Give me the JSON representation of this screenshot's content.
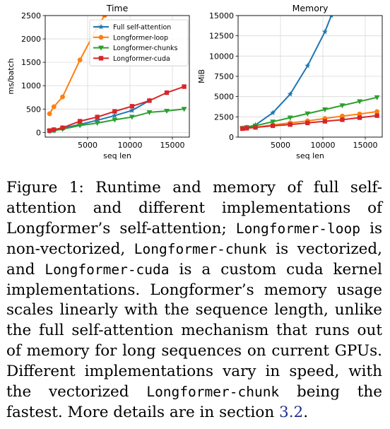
{
  "chart_data": [
    {
      "type": "line",
      "title": "Time",
      "xlabel": "seq len",
      "ylabel": "ms/batch",
      "xlim": [
        0,
        17000
      ],
      "ylim": [
        -100,
        2500
      ],
      "xticks": [
        5000,
        10000,
        15000
      ],
      "yticks": [
        0,
        500,
        1000,
        1500,
        2000,
        2500
      ],
      "xtick_labels": [
        "5000",
        "10000",
        "15000"
      ],
      "ytick_labels": [
        "0",
        "500",
        "1000",
        "1500",
        "2000",
        "2500"
      ],
      "grid": true,
      "legend_position": "upper-right",
      "series": [
        {
          "name": "Full self-attention",
          "color": "#1f77b4",
          "marker": "star",
          "x": [
            512,
            1024,
            2048,
            4096,
            6144,
            8192,
            10240,
            12288
          ],
          "y": [
            30,
            40,
            90,
            170,
            260,
            360,
            470,
            680
          ]
        },
        {
          "name": "Longformer-loop",
          "color": "#ff7f0e",
          "marker": "circle",
          "x": [
            512,
            1024,
            2048,
            4096,
            6144,
            7000
          ],
          "y": [
            400,
            550,
            760,
            1550,
            2250,
            2500
          ]
        },
        {
          "name": "Longformer-chunks",
          "color": "#2ca02c",
          "marker": "triangle-down",
          "x": [
            512,
            1024,
            2048,
            4096,
            6144,
            8192,
            10240,
            12288,
            14336,
            16384
          ],
          "y": [
            25,
            40,
            70,
            150,
            200,
            270,
            330,
            430,
            460,
            500
          ]
        },
        {
          "name": "Longformer-cuda",
          "color": "#d62728",
          "marker": "square",
          "x": [
            512,
            1024,
            2048,
            4096,
            6144,
            8192,
            10240,
            12288,
            14336,
            16384
          ],
          "y": [
            40,
            60,
            100,
            240,
            330,
            450,
            560,
            680,
            850,
            980
          ]
        }
      ]
    },
    {
      "type": "line",
      "title": "Memory",
      "xlabel": "seq len",
      "ylabel": "MiB",
      "xlim": [
        0,
        17000
      ],
      "ylim": [
        0,
        15000
      ],
      "xticks": [
        5000,
        10000,
        15000
      ],
      "yticks": [
        0,
        2500,
        5000,
        7500,
        10000,
        12500,
        15000
      ],
      "xtick_labels": [
        "5000",
        "10000",
        "15000"
      ],
      "ytick_labels": [
        "0",
        "2500",
        "5000",
        "7500",
        "10000",
        "12500",
        "15000"
      ],
      "grid": true,
      "series": [
        {
          "name": "Full self-attention",
          "color": "#1f77b4",
          "marker": "star",
          "x": [
            512,
            1024,
            2048,
            4096,
            6144,
            8192,
            10240,
            11000
          ],
          "y": [
            1100,
            1200,
            1500,
            3000,
            5300,
            8800,
            13000,
            15000
          ]
        },
        {
          "name": "Longformer-loop",
          "color": "#ff7f0e",
          "marker": "circle",
          "x": [
            512,
            1024,
            2048,
            4096,
            6144,
            8192,
            10240,
            12288,
            14336,
            16384
          ],
          "y": [
            1050,
            1100,
            1200,
            1500,
            1750,
            2000,
            2300,
            2600,
            2850,
            3150
          ]
        },
        {
          "name": "Longformer-chunks",
          "color": "#2ca02c",
          "marker": "triangle-down",
          "x": [
            512,
            1024,
            2048,
            4096,
            6144,
            8192,
            10240,
            12288,
            14336,
            16384
          ],
          "y": [
            1100,
            1200,
            1400,
            1900,
            2400,
            2900,
            3400,
            3900,
            4400,
            4900
          ]
        },
        {
          "name": "Longformer-cuda",
          "color": "#d62728",
          "marker": "square",
          "x": [
            512,
            1024,
            2048,
            4096,
            6144,
            8192,
            10240,
            12288,
            14336,
            16384
          ],
          "y": [
            1050,
            1100,
            1200,
            1400,
            1550,
            1750,
            1950,
            2150,
            2400,
            2650
          ]
        }
      ]
    }
  ],
  "caption": {
    "label": "Figure 1:",
    "text_1": "Runtime and memory of full self-attention and different implementations of Longformer’s self-attention;",
    "code_loop": "Longformer-loop",
    "text_2": "is non-vectorized,",
    "code_chunk": "Longformer-chunk",
    "text_3": "is vectorized, and",
    "code_cuda": "Longformer-cuda",
    "text_4": "is a custom cuda kernel implementations. Longformer’s memory usage scales linearly with the sequence length, unlike the full self-attention mechanism that runs out of memory for long sequences on current GPUs. Different implementations vary in speed, with the vectorized",
    "code_chunk_2": "Longformer-chunk",
    "text_5": "being the fastest. More details are in section",
    "section_ref": "3.2",
    "text_6": "."
  }
}
